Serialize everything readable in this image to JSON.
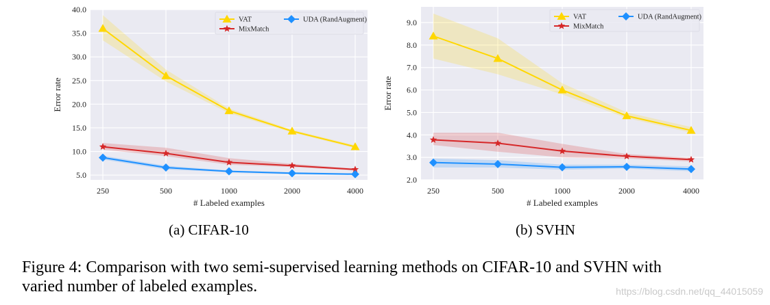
{
  "chart_data": [
    {
      "type": "line",
      "xlabel": "# Labeled examples",
      "ylabel": "Error rate",
      "categories": [
        "250",
        "500",
        "1000",
        "2000",
        "4000"
      ],
      "ylim": [
        4.0,
        40.0
      ],
      "yticks": [
        "5.0",
        "10.0",
        "15.0",
        "20.0",
        "25.0",
        "30.0",
        "35.0",
        "40.0"
      ],
      "grid": true,
      "legend_position": "top-right",
      "series": [
        {
          "name": "VAT",
          "color": "#FFD700",
          "marker": "triangle",
          "values": [
            36.0,
            26.0,
            18.6,
            14.3,
            11.0
          ],
          "lower": [
            33.5,
            24.8,
            18.1,
            14.0,
            10.7
          ],
          "upper": [
            38.8,
            27.3,
            19.1,
            14.6,
            11.3
          ]
        },
        {
          "name": "MixMatch",
          "color": "#D62728",
          "marker": "star",
          "values": [
            11.0,
            9.6,
            7.7,
            7.0,
            6.2
          ],
          "lower": [
            10.4,
            9.0,
            7.2,
            6.7,
            6.0
          ],
          "upper": [
            11.8,
            10.8,
            8.6,
            7.4,
            6.4
          ]
        },
        {
          "name": "UDA (RandAugment)",
          "color": "#1E90FF",
          "marker": "diamond",
          "values": [
            8.7,
            6.6,
            5.8,
            5.4,
            5.2
          ],
          "lower": [
            8.3,
            6.2,
            5.6,
            5.2,
            5.0
          ],
          "upper": [
            9.1,
            7.0,
            6.0,
            5.6,
            5.4
          ]
        }
      ]
    },
    {
      "type": "line",
      "xlabel": "# Labeled examples",
      "ylabel": "Error rate",
      "categories": [
        "250",
        "500",
        "1000",
        "2000",
        "4000"
      ],
      "ylim": [
        2.0,
        9.7
      ],
      "yticks": [
        "2.0",
        "3.0",
        "4.0",
        "5.0",
        "6.0",
        "7.0",
        "8.0",
        "9.0"
      ],
      "grid": true,
      "legend_position": "top-right",
      "series": [
        {
          "name": "VAT",
          "color": "#FFD700",
          "marker": "triangle",
          "values": [
            8.4,
            7.4,
            6.0,
            4.85,
            4.2
          ],
          "lower": [
            7.4,
            6.7,
            5.8,
            4.75,
            4.1
          ],
          "upper": [
            9.4,
            8.3,
            6.3,
            5.0,
            4.35
          ]
        },
        {
          "name": "MixMatch",
          "color": "#D62728",
          "marker": "star",
          "values": [
            3.78,
            3.63,
            3.28,
            3.05,
            2.9
          ],
          "lower": [
            3.55,
            3.25,
            3.0,
            2.95,
            2.82
          ],
          "upper": [
            4.1,
            4.1,
            3.6,
            3.15,
            2.98
          ]
        },
        {
          "name": "UDA (RandAugment)",
          "color": "#1E90FF",
          "marker": "diamond",
          "values": [
            2.77,
            2.7,
            2.56,
            2.58,
            2.48
          ],
          "lower": [
            2.55,
            2.55,
            2.45,
            2.5,
            2.38
          ],
          "upper": [
            2.95,
            2.88,
            2.68,
            2.68,
            2.6
          ]
        }
      ]
    }
  ],
  "subcaptions": {
    "a": "(a) CIFAR-10",
    "b": "(b) SVHN"
  },
  "caption": {
    "line1": "Figure 4: Comparison with two semi-supervised learning methods on CIFAR-10 and SVHN with",
    "line2": "varied number of labeled examples."
  },
  "watermark": "https://blog.csdn.net/qq_44015059"
}
